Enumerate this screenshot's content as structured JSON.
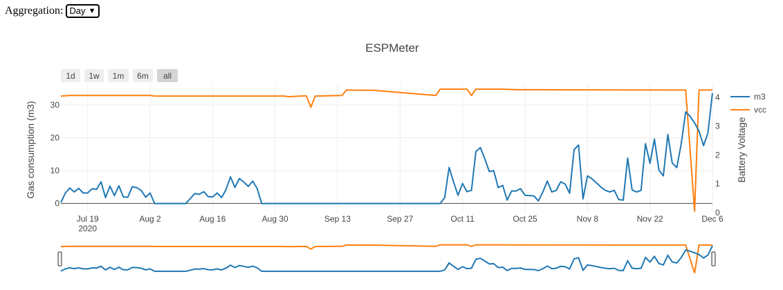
{
  "aggregation": {
    "label": "Aggregation:",
    "selected": "Day"
  },
  "range_selector": {
    "buttons": [
      "1d",
      "1w",
      "1m",
      "6m",
      "all"
    ],
    "active": "all"
  },
  "colors": {
    "m3": "#1f77b4",
    "vcc": "#ff7f0e"
  },
  "icons": {
    "select_arrow": "chevron-down-icon"
  },
  "chart_data": {
    "type": "line",
    "title": "ESPMeter",
    "x_ticks": [
      "Jul 19",
      "Aug 2",
      "Aug 16",
      "Aug 30",
      "Sep 13",
      "Sep 27",
      "Oct 11",
      "Oct 25",
      "Nov 8",
      "Nov 22",
      "Dec 6"
    ],
    "x_tick_year": "2020",
    "y_left": {
      "label": "Gas consumption (m3)",
      "ticks": [
        0,
        10,
        20,
        30
      ],
      "range": [
        -2.8,
        36.3
      ]
    },
    "y_right": {
      "label": "Battery Voltage",
      "ticks": [
        0,
        1,
        2,
        3,
        4
      ],
      "range": [
        0,
        4.45
      ]
    },
    "legend_position": "top-right",
    "grid": true,
    "series": [
      {
        "name": "m3",
        "axis": "left",
        "points": [
          [
            "2020-07-13",
            0.3
          ],
          [
            "2020-07-14",
            3.2
          ],
          [
            "2020-07-15",
            4.7
          ],
          [
            "2020-07-16",
            3.5
          ],
          [
            "2020-07-17",
            4.6
          ],
          [
            "2020-07-18",
            3.2
          ],
          [
            "2020-07-19",
            3.2
          ],
          [
            "2020-07-20",
            4.5
          ],
          [
            "2020-07-21",
            4.3
          ],
          [
            "2020-07-22",
            6.6
          ],
          [
            "2020-07-23",
            1.8
          ],
          [
            "2020-07-24",
            5.3
          ],
          [
            "2020-07-25",
            2.4
          ],
          [
            "2020-07-26",
            5.4
          ],
          [
            "2020-07-27",
            2.0
          ],
          [
            "2020-07-28",
            1.9
          ],
          [
            "2020-07-29",
            5.1
          ],
          [
            "2020-07-30",
            4.8
          ],
          [
            "2020-07-31",
            4.0
          ],
          [
            "2020-08-01",
            1.9
          ],
          [
            "2020-08-02",
            3.2
          ],
          [
            "2020-08-03",
            0.0
          ],
          [
            "2020-08-10",
            0.0
          ],
          [
            "2020-08-11",
            1.5
          ],
          [
            "2020-08-12",
            3.0
          ],
          [
            "2020-08-13",
            2.8
          ],
          [
            "2020-08-14",
            3.6
          ],
          [
            "2020-08-15",
            2.1
          ],
          [
            "2020-08-16",
            2.0
          ],
          [
            "2020-08-17",
            3.2
          ],
          [
            "2020-08-18",
            1.8
          ],
          [
            "2020-08-19",
            4.2
          ],
          [
            "2020-08-20",
            8.1
          ],
          [
            "2020-08-21",
            4.9
          ],
          [
            "2020-08-22",
            7.6
          ],
          [
            "2020-08-23",
            6.5
          ],
          [
            "2020-08-24",
            5.2
          ],
          [
            "2020-08-25",
            6.8
          ],
          [
            "2020-08-26",
            4.5
          ],
          [
            "2020-08-27",
            0.0
          ],
          [
            "2020-10-06",
            0.0
          ],
          [
            "2020-10-07",
            1.8
          ],
          [
            "2020-10-08",
            11.0
          ],
          [
            "2020-10-09",
            6.5
          ],
          [
            "2020-10-10",
            2.5
          ],
          [
            "2020-10-11",
            6.1
          ],
          [
            "2020-10-12",
            3.6
          ],
          [
            "2020-10-13",
            4.0
          ],
          [
            "2020-10-14",
            15.8
          ],
          [
            "2020-10-15",
            17.0
          ],
          [
            "2020-10-16",
            13.6
          ],
          [
            "2020-10-17",
            9.7
          ],
          [
            "2020-10-18",
            10.0
          ],
          [
            "2020-10-19",
            4.8
          ],
          [
            "2020-10-20",
            5.5
          ],
          [
            "2020-10-21",
            1.0
          ],
          [
            "2020-10-22",
            3.8
          ],
          [
            "2020-10-23",
            3.8
          ],
          [
            "2020-10-24",
            4.5
          ],
          [
            "2020-10-25",
            2.5
          ],
          [
            "2020-10-26",
            2.4
          ],
          [
            "2020-10-27",
            2.3
          ],
          [
            "2020-10-28",
            0.8
          ],
          [
            "2020-10-29",
            3.5
          ],
          [
            "2020-10-30",
            6.8
          ],
          [
            "2020-10-31",
            3.5
          ],
          [
            "2020-11-01",
            4.0
          ],
          [
            "2020-11-02",
            6.6
          ],
          [
            "2020-11-03",
            5.9
          ],
          [
            "2020-11-04",
            3.1
          ],
          [
            "2020-11-05",
            16.4
          ],
          [
            "2020-11-06",
            17.8
          ],
          [
            "2020-11-07",
            1.4
          ],
          [
            "2020-11-08",
            8.4
          ],
          [
            "2020-11-09",
            7.5
          ],
          [
            "2020-11-10",
            6.3
          ],
          [
            "2020-11-11",
            5.0
          ],
          [
            "2020-11-12",
            4.0
          ],
          [
            "2020-11-13",
            3.5
          ],
          [
            "2020-11-14",
            4.0
          ],
          [
            "2020-11-15",
            1.2
          ],
          [
            "2020-11-16",
            1.0
          ],
          [
            "2020-11-17",
            13.8
          ],
          [
            "2020-11-18",
            4.1
          ],
          [
            "2020-11-19",
            3.5
          ],
          [
            "2020-11-20",
            4.0
          ],
          [
            "2020-11-21",
            18.2
          ],
          [
            "2020-11-22",
            12.2
          ],
          [
            "2020-11-23",
            19.6
          ],
          [
            "2020-11-24",
            10.2
          ],
          [
            "2020-11-25",
            8.4
          ],
          [
            "2020-11-26",
            21.0
          ],
          [
            "2020-11-27",
            12.3
          ],
          [
            "2020-11-28",
            10.9
          ],
          [
            "2020-11-29",
            18.1
          ],
          [
            "2020-11-30",
            27.9
          ],
          [
            "2020-12-01",
            26.5
          ],
          [
            "2020-12-02",
            24.5
          ],
          [
            "2020-12-03",
            22.0
          ],
          [
            "2020-12-04",
            17.6
          ],
          [
            "2020-12-05",
            21.5
          ],
          [
            "2020-12-06",
            33.6
          ]
        ]
      },
      {
        "name": "vcc",
        "axis": "right",
        "points": [
          [
            "2020-07-13",
            4.04
          ],
          [
            "2020-07-15",
            4.06
          ],
          [
            "2020-08-02",
            4.06
          ],
          [
            "2020-08-03",
            4.04
          ],
          [
            "2020-09-01",
            4.04
          ],
          [
            "2020-09-02",
            4.02
          ],
          [
            "2020-09-06",
            4.05
          ],
          [
            "2020-09-07",
            3.65
          ],
          [
            "2020-09-08",
            4.04
          ],
          [
            "2020-09-14",
            4.06
          ],
          [
            "2020-09-15",
            4.25
          ],
          [
            "2020-09-21",
            4.24
          ],
          [
            "2020-10-05",
            4.06
          ],
          [
            "2020-10-06",
            4.28
          ],
          [
            "2020-10-12",
            4.28
          ],
          [
            "2020-10-13",
            4.06
          ],
          [
            "2020-10-14",
            4.28
          ],
          [
            "2020-10-20",
            4.28
          ],
          [
            "2020-10-23",
            4.26
          ],
          [
            "2020-11-29",
            4.25
          ],
          [
            "2020-11-30",
            4.25
          ],
          [
            "2020-12-02",
            0.05
          ],
          [
            "2020-12-03",
            4.25
          ],
          [
            "2020-12-06",
            4.25
          ]
        ]
      }
    ]
  }
}
